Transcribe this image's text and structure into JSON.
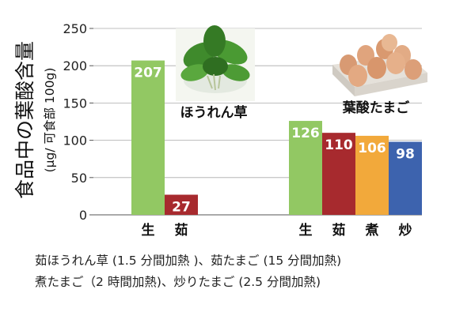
{
  "chart_data": {
    "type": "bar",
    "ylabel": "食品中の葉酸含量",
    "ylabel_unit": "(μg/ 可食部 100g)",
    "ylim": [
      0,
      250
    ],
    "yticks": [
      0,
      50,
      100,
      150,
      200,
      250
    ],
    "grid": true,
    "groups": [
      {
        "name": "ほうれん草",
        "bars": [
          {
            "category": "生",
            "value": 207,
            "color": "#92C863"
          },
          {
            "category": "茹",
            "value": 27,
            "color": "#A72A2E"
          }
        ]
      },
      {
        "name": "葉酸たまご",
        "bars": [
          {
            "category": "生",
            "value": 126,
            "color": "#92C863"
          },
          {
            "category": "茹",
            "value": 110,
            "color": "#A72A2E"
          },
          {
            "category": "煮",
            "value": 106,
            "color": "#F2A93B"
          },
          {
            "category": "炒",
            "value": 98,
            "color": "#3D63AE"
          }
        ]
      }
    ]
  },
  "images": {
    "spinach": "spinach-photo",
    "eggs": "eggs-in-carton-photo"
  },
  "captions": [
    "茹ほうれん草 (1.5 分間加熱 )、茹たまご (15 分間加熱)",
    "煮たまご（2 時間加熱)、炒りたまご (2.5 分間加熱)"
  ]
}
